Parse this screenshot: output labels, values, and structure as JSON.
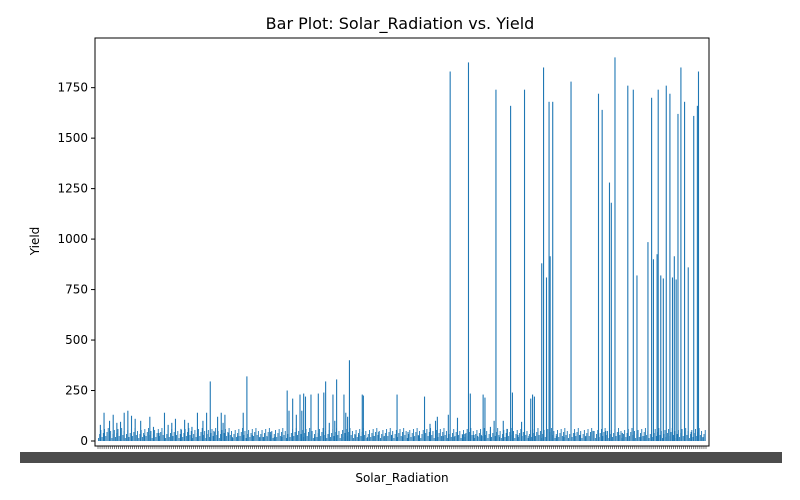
{
  "chart_data": {
    "type": "bar",
    "title": "Bar Plot: Solar_Radiation vs. Yield",
    "xlabel": "Solar_Radiation",
    "ylabel": "Yield",
    "ylim": [
      0,
      1980
    ],
    "yticks": [
      0,
      250,
      500,
      750,
      1000,
      1250,
      1500,
      1750
    ],
    "ytick_labels": [
      "0",
      "250",
      "500",
      "750",
      "1000",
      "1250",
      "1500",
      "1750"
    ],
    "x_tick_labels_note": "Category tick labels are densely overlapped and unreadable",
    "bar_color": "#1f77b4",
    "grid": false,
    "legend": "none",
    "bars": [
      {
        "x": 0.5,
        "y": 80
      },
      {
        "x": 1.5,
        "y": 140
      },
      {
        "x": 3.0,
        "y": 100
      },
      {
        "x": 4.0,
        "y": 130
      },
      {
        "x": 5.0,
        "y": 90
      },
      {
        "x": 6.0,
        "y": 95
      },
      {
        "x": 7.0,
        "y": 140
      },
      {
        "x": 8.0,
        "y": 150
      },
      {
        "x": 9.0,
        "y": 125
      },
      {
        "x": 10.0,
        "y": 110
      },
      {
        "x": 11.5,
        "y": 100
      },
      {
        "x": 12.5,
        "y": 30
      },
      {
        "x": 14.0,
        "y": 120
      },
      {
        "x": 15.0,
        "y": 70
      },
      {
        "x": 16.5,
        "y": 40
      },
      {
        "x": 18.0,
        "y": 140
      },
      {
        "x": 19.0,
        "y": 80
      },
      {
        "x": 20.0,
        "y": 90
      },
      {
        "x": 21.0,
        "y": 110
      },
      {
        "x": 22.5,
        "y": 60
      },
      {
        "x": 23.5,
        "y": 105
      },
      {
        "x": 24.5,
        "y": 90
      },
      {
        "x": 25.5,
        "y": 70
      },
      {
        "x": 27.0,
        "y": 140
      },
      {
        "x": 28.5,
        "y": 100
      },
      {
        "x": 29.5,
        "y": 140
      },
      {
        "x": 30.5,
        "y": 295
      },
      {
        "x": 31.5,
        "y": 50
      },
      {
        "x": 32.5,
        "y": 120
      },
      {
        "x": 33.5,
        "y": 140
      },
      {
        "x": 34.0,
        "y": 90
      },
      {
        "x": 34.5,
        "y": 130
      },
      {
        "x": 35.5,
        "y": 40
      },
      {
        "x": 36.5,
        "y": 20
      },
      {
        "x": 38.0,
        "y": 25
      },
      {
        "x": 39.5,
        "y": 140
      },
      {
        "x": 40.5,
        "y": 320
      },
      {
        "x": 42.0,
        "y": 30
      },
      {
        "x": 44.0,
        "y": 20
      },
      {
        "x": 45.0,
        "y": 20
      },
      {
        "x": 46.0,
        "y": 20
      },
      {
        "x": 47.0,
        "y": 45
      },
      {
        "x": 48.0,
        "y": 20
      },
      {
        "x": 50.0,
        "y": 20
      },
      {
        "x": 51.5,
        "y": 250
      },
      {
        "x": 52.0,
        "y": 150
      },
      {
        "x": 53.0,
        "y": 210
      },
      {
        "x": 54.0,
        "y": 130
      },
      {
        "x": 55.0,
        "y": 230
      },
      {
        "x": 55.5,
        "y": 150
      },
      {
        "x": 56.0,
        "y": 235
      },
      {
        "x": 56.5,
        "y": 220
      },
      {
        "x": 58.0,
        "y": 230
      },
      {
        "x": 59.0,
        "y": 20
      },
      {
        "x": 60.0,
        "y": 235
      },
      {
        "x": 61.5,
        "y": 240
      },
      {
        "x": 62.0,
        "y": 295
      },
      {
        "x": 63.0,
        "y": 90
      },
      {
        "x": 64.0,
        "y": 230
      },
      {
        "x": 64.5,
        "y": 100
      },
      {
        "x": 65.0,
        "y": 305
      },
      {
        "x": 67.0,
        "y": 230
      },
      {
        "x": 67.5,
        "y": 140
      },
      {
        "x": 68.0,
        "y": 120
      },
      {
        "x": 68.5,
        "y": 400
      },
      {
        "x": 70.0,
        "y": 30
      },
      {
        "x": 71.0,
        "y": 30
      },
      {
        "x": 72.0,
        "y": 230
      },
      {
        "x": 72.3,
        "y": 225
      },
      {
        "x": 73.5,
        "y": 20
      },
      {
        "x": 75.0,
        "y": 25
      },
      {
        "x": 76.5,
        "y": 45
      },
      {
        "x": 78.0,
        "y": 25
      },
      {
        "x": 80.0,
        "y": 30
      },
      {
        "x": 81.5,
        "y": 230
      },
      {
        "x": 83.0,
        "y": 20
      },
      {
        "x": 84.5,
        "y": 45
      },
      {
        "x": 86.0,
        "y": 20
      },
      {
        "x": 87.5,
        "y": 25
      },
      {
        "x": 89.0,
        "y": 220
      },
      {
        "x": 90.5,
        "y": 85
      },
      {
        "x": 92.0,
        "y": 100
      },
      {
        "x": 92.5,
        "y": 120
      },
      {
        "x": 94.0,
        "y": 25
      },
      {
        "x": 95.5,
        "y": 130
      },
      {
        "x": 96.0,
        "y": 1830
      },
      {
        "x": 97.0,
        "y": 20
      },
      {
        "x": 98.0,
        "y": 115
      },
      {
        "x": 99.5,
        "y": 30
      },
      {
        "x": 100.0,
        "y": 35
      },
      {
        "x": 101.0,
        "y": 1875
      },
      {
        "x": 101.5,
        "y": 235
      },
      {
        "x": 102.5,
        "y": 30
      },
      {
        "x": 103.5,
        "y": 25
      },
      {
        "x": 104.5,
        "y": 30
      },
      {
        "x": 105.0,
        "y": 230
      },
      {
        "x": 105.5,
        "y": 215
      },
      {
        "x": 107.0,
        "y": 70
      },
      {
        "x": 108.0,
        "y": 100
      },
      {
        "x": 108.5,
        "y": 1740
      },
      {
        "x": 109.5,
        "y": 20
      },
      {
        "x": 110.5,
        "y": 100
      },
      {
        "x": 111.5,
        "y": 60
      },
      {
        "x": 112.5,
        "y": 1660
      },
      {
        "x": 113.0,
        "y": 240
      },
      {
        "x": 114.5,
        "y": 30
      },
      {
        "x": 115.5,
        "y": 95
      },
      {
        "x": 116.3,
        "y": 1740
      },
      {
        "x": 117.5,
        "y": 25
      },
      {
        "x": 118.0,
        "y": 210
      },
      {
        "x": 118.5,
        "y": 230
      },
      {
        "x": 119.0,
        "y": 220
      },
      {
        "x": 120.0,
        "y": 30
      },
      {
        "x": 121.0,
        "y": 880
      },
      {
        "x": 121.5,
        "y": 1850
      },
      {
        "x": 122.3,
        "y": 810
      },
      {
        "x": 123.0,
        "y": 1680
      },
      {
        "x": 123.3,
        "y": 915
      },
      {
        "x": 124.0,
        "y": 1680
      },
      {
        "x": 125.0,
        "y": 25
      },
      {
        "x": 127.0,
        "y": 20
      },
      {
        "x": 129.0,
        "y": 1780
      },
      {
        "x": 130.0,
        "y": 40
      },
      {
        "x": 131.5,
        "y": 30
      },
      {
        "x": 133.0,
        "y": 25
      },
      {
        "x": 135.0,
        "y": 50
      },
      {
        "x": 136.5,
        "y": 1720
      },
      {
        "x": 137.5,
        "y": 1640
      },
      {
        "x": 138.5,
        "y": 50
      },
      {
        "x": 139.5,
        "y": 1280
      },
      {
        "x": 140.0,
        "y": 1180
      },
      {
        "x": 141.0,
        "y": 1900
      },
      {
        "x": 142.0,
        "y": 45
      },
      {
        "x": 143.0,
        "y": 40
      },
      {
        "x": 144.5,
        "y": 1760
      },
      {
        "x": 146.0,
        "y": 1740
      },
      {
        "x": 147.0,
        "y": 820
      },
      {
        "x": 148.0,
        "y": 20
      },
      {
        "x": 149.0,
        "y": 25
      },
      {
        "x": 150.0,
        "y": 985
      },
      {
        "x": 151.0,
        "y": 1700
      },
      {
        "x": 151.5,
        "y": 900
      },
      {
        "x": 152.5,
        "y": 925
      },
      {
        "x": 152.8,
        "y": 1740
      },
      {
        "x": 153.5,
        "y": 820
      },
      {
        "x": 154.2,
        "y": 805
      },
      {
        "x": 155.0,
        "y": 1760
      },
      {
        "x": 156.0,
        "y": 1720
      },
      {
        "x": 156.7,
        "y": 810
      },
      {
        "x": 157.2,
        "y": 915
      },
      {
        "x": 157.7,
        "y": 800
      },
      {
        "x": 158.2,
        "y": 1620
      },
      {
        "x": 159.0,
        "y": 1850
      },
      {
        "x": 160.0,
        "y": 1680
      },
      {
        "x": 161.0,
        "y": 860
      },
      {
        "x": 161.8,
        "y": 45
      },
      {
        "x": 162.5,
        "y": 1610
      },
      {
        "x": 163.5,
        "y": 1660
      },
      {
        "x": 163.8,
        "y": 1830
      },
      {
        "x": 165.0,
        "y": 20
      }
    ]
  }
}
